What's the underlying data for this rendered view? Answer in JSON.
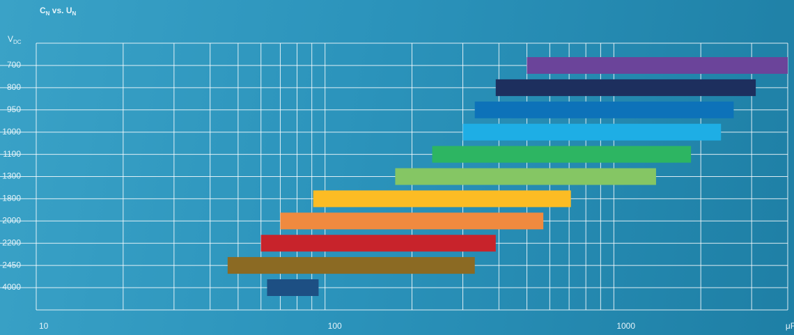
{
  "chart_data": {
    "type": "range-bar",
    "title": [
      {
        "text": "C"
      },
      {
        "text": "N",
        "sub": true
      },
      {
        "text": " vs. "
      },
      {
        "text": "U"
      },
      {
        "text": "N",
        "sub": true
      }
    ],
    "y_label": [
      {
        "text": "V"
      },
      {
        "text": "DC",
        "sub": true
      }
    ],
    "categories": [
      "700",
      "800",
      "950",
      "1000",
      "1100",
      "1300",
      "1800",
      "2000",
      "2200",
      "2450",
      "4000"
    ],
    "ranges": [
      [
        500,
        4000
      ],
      [
        390,
        3100
      ],
      [
        330,
        2600
      ],
      [
        300,
        2350
      ],
      [
        235,
        1850
      ],
      [
        175,
        1400
      ],
      [
        91,
        710
      ],
      [
        70,
        570
      ],
      [
        60,
        390
      ],
      [
        46,
        330
      ],
      [
        63,
        95
      ]
    ],
    "colors": [
      "#6b449a",
      "#1d2f5e",
      "#0d72b9",
      "#1eaee5",
      "#2db562",
      "#85c664",
      "#fcbc24",
      "#f08a3f",
      "#c8232b",
      "#8b6a23",
      "#1d4f83"
    ],
    "log_x": true,
    "xlim": [
      10,
      4000
    ],
    "xticks": [
      10,
      100,
      1000,
      {
        "value": 4000,
        "label": "μF"
      }
    ],
    "x_grid": [
      10,
      20,
      30,
      40,
      50,
      60,
      70,
      80,
      90,
      100,
      200,
      300,
      400,
      500,
      600,
      700,
      800,
      900,
      1000,
      2000,
      3000,
      4000
    ],
    "grid": true
  }
}
